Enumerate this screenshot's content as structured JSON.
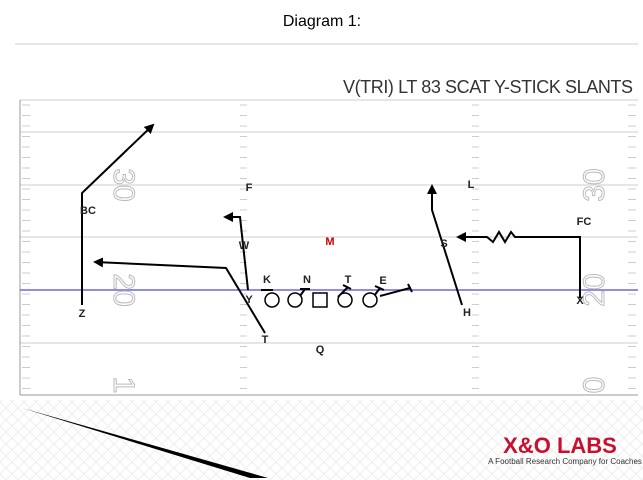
{
  "header": {
    "title": "Diagram 1:"
  },
  "play": {
    "name": "V(TRI) LT 83 SCAT Y-STICK SLANTS"
  },
  "field": {
    "yard_numbers": [
      "30",
      "20",
      "1",
      "30",
      "20",
      "0"
    ]
  },
  "players": [
    "BC",
    "F",
    "W",
    "M",
    "K",
    "N",
    "T",
    "E",
    "Y",
    "Z",
    "T",
    "Q",
    "L",
    "S",
    "FC",
    "H",
    "X"
  ],
  "logo": {
    "brand": "X&O LABS",
    "tagline": "A Football Research Company for Coaches"
  }
}
